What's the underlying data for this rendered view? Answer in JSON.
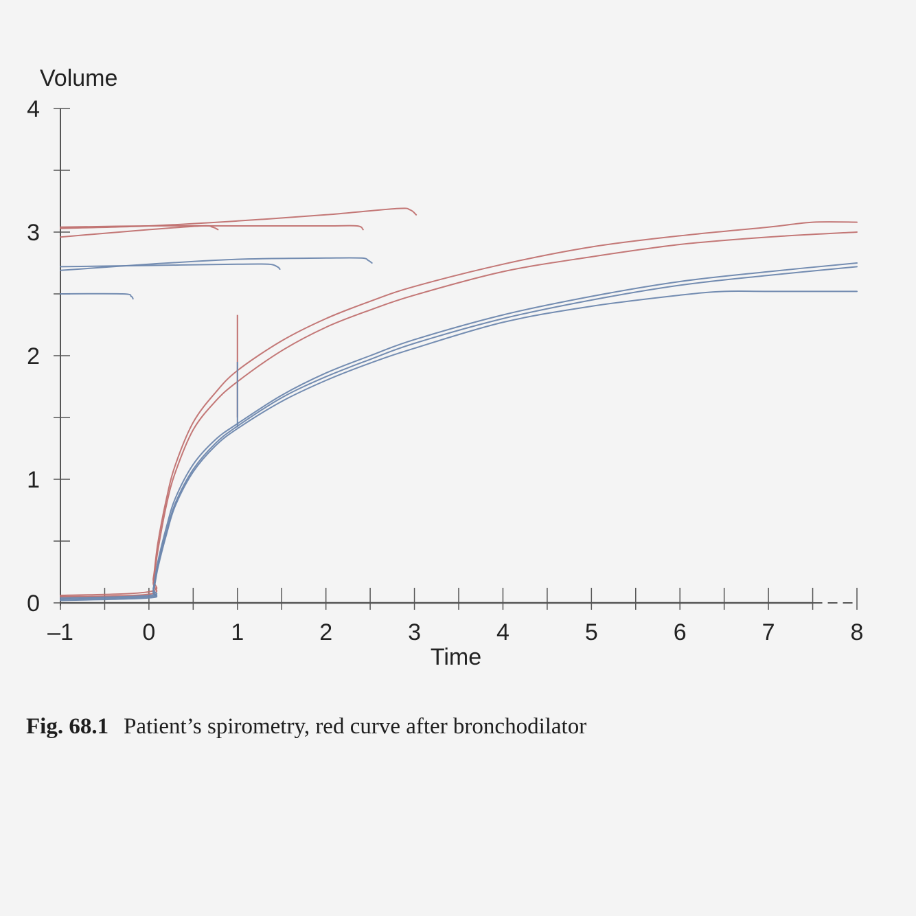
{
  "chart_data": {
    "type": "line",
    "title": "",
    "xlabel": "Time",
    "ylabel": "Volume",
    "xlim": [
      -1,
      8
    ],
    "ylim": [
      0,
      4
    ],
    "x_ticks": [
      -1,
      0,
      1,
      2,
      3,
      4,
      5,
      6,
      7,
      8
    ],
    "x_tick_labels": [
      "–1",
      "0",
      "1",
      "2",
      "3",
      "4",
      "5",
      "6",
      "7",
      "8"
    ],
    "y_ticks": [
      0,
      1,
      2,
      3,
      4
    ],
    "y_tick_labels": [
      "0",
      "1",
      "2",
      "3",
      "4"
    ],
    "y_minor_ticks": [
      0.5,
      1.5,
      2.5,
      3.5
    ],
    "x_minor_ticks": [
      -0.5,
      0.5,
      1.5,
      2.5,
      3.5,
      4.5,
      5.5,
      6.5,
      7.5
    ],
    "grid": false,
    "colors": {
      "red": "#c0706f",
      "blue": "#6b86ad",
      "axis": "#555555"
    },
    "series": [
      {
        "color": "red",
        "x": [
          -1,
          0,
          0.05,
          0.1,
          0.2,
          0.3,
          0.5,
          0.75,
          1,
          1.5,
          2,
          2.5,
          3,
          4,
          5,
          6,
          7,
          7.5,
          8
        ],
        "y": [
          0.06,
          0.09,
          0.2,
          0.48,
          0.85,
          1.12,
          1.46,
          1.7,
          1.88,
          2.12,
          2.3,
          2.44,
          2.56,
          2.74,
          2.88,
          2.97,
          3.04,
          3.08,
          3.08
        ]
      },
      {
        "color": "red",
        "x": [
          -1,
          0,
          0.05,
          0.1,
          0.2,
          0.3,
          0.5,
          0.75,
          1,
          1.5,
          2,
          2.5,
          3,
          4,
          5,
          6,
          7,
          8
        ],
        "y": [
          0.05,
          0.07,
          0.17,
          0.42,
          0.8,
          1.06,
          1.4,
          1.63,
          1.79,
          2.04,
          2.23,
          2.37,
          2.49,
          2.68,
          2.8,
          2.9,
          2.96,
          3.0
        ]
      },
      {
        "color": "blue",
        "x": [
          -1,
          0,
          0.05,
          0.1,
          0.2,
          0.3,
          0.5,
          0.75,
          1,
          1.5,
          2,
          2.5,
          3,
          4,
          5,
          6,
          7,
          8
        ],
        "y": [
          0.04,
          0.06,
          0.12,
          0.33,
          0.62,
          0.85,
          1.12,
          1.32,
          1.45,
          1.68,
          1.86,
          2.0,
          2.13,
          2.33,
          2.48,
          2.6,
          2.68,
          2.75
        ]
      },
      {
        "color": "blue",
        "x": [
          -1,
          0,
          0.05,
          0.1,
          0.2,
          0.3,
          0.5,
          0.75,
          1,
          1.5,
          2,
          2.5,
          3,
          4,
          5,
          6,
          7,
          8
        ],
        "y": [
          0.03,
          0.05,
          0.1,
          0.3,
          0.58,
          0.81,
          1.08,
          1.29,
          1.43,
          1.66,
          1.83,
          1.97,
          2.1,
          2.3,
          2.45,
          2.57,
          2.65,
          2.72
        ]
      },
      {
        "color": "blue",
        "x": [
          -1,
          0,
          0.05,
          0.1,
          0.2,
          0.3,
          0.5,
          0.75,
          1,
          1.5,
          2,
          2.5,
          3,
          4,
          5,
          6,
          6.5,
          7,
          8
        ],
        "y": [
          0.02,
          0.04,
          0.09,
          0.28,
          0.56,
          0.79,
          1.06,
          1.27,
          1.41,
          1.63,
          1.8,
          1.94,
          2.06,
          2.27,
          2.4,
          2.49,
          2.52,
          2.52,
          2.52
        ]
      },
      {
        "color": "red",
        "x": [
          -1,
          0,
          1,
          2,
          2.8,
          2.95,
          3.02
        ],
        "y": [
          3.03,
          3.05,
          3.09,
          3.14,
          3.19,
          3.18,
          3.14
        ]
      },
      {
        "color": "red",
        "x": [
          -1,
          0,
          1,
          2,
          2.35,
          2.42
        ],
        "y": [
          3.04,
          3.05,
          3.05,
          3.05,
          3.05,
          3.02
        ]
      },
      {
        "color": "red",
        "x": [
          -1,
          0,
          0.6,
          0.72,
          0.78
        ],
        "y": [
          2.96,
          3.02,
          3.05,
          3.04,
          3.02
        ]
      },
      {
        "color": "blue",
        "x": [
          -1,
          0,
          1,
          2,
          2.4,
          2.48,
          2.52
        ],
        "y": [
          2.69,
          2.74,
          2.78,
          2.79,
          2.79,
          2.77,
          2.75
        ]
      },
      {
        "color": "blue",
        "x": [
          -1,
          0,
          1,
          1.35,
          1.45,
          1.48
        ],
        "y": [
          2.72,
          2.73,
          2.74,
          2.74,
          2.72,
          2.7
        ]
      },
      {
        "color": "blue",
        "x": [
          -1,
          -0.3,
          -0.2,
          -0.18
        ],
        "y": [
          2.5,
          2.5,
          2.48,
          2.46
        ]
      }
    ],
    "spikes": [
      {
        "color": "red",
        "x": 1.0,
        "y_from": 1.5,
        "y_to": 2.33
      },
      {
        "color": "blue",
        "x": 1.0,
        "y_from": 1.42,
        "y_to": 1.95
      }
    ]
  },
  "caption": {
    "figure_number": "Fig. 68.1",
    "text": "Patient’s spirometry, red curve after bronchodilator"
  }
}
